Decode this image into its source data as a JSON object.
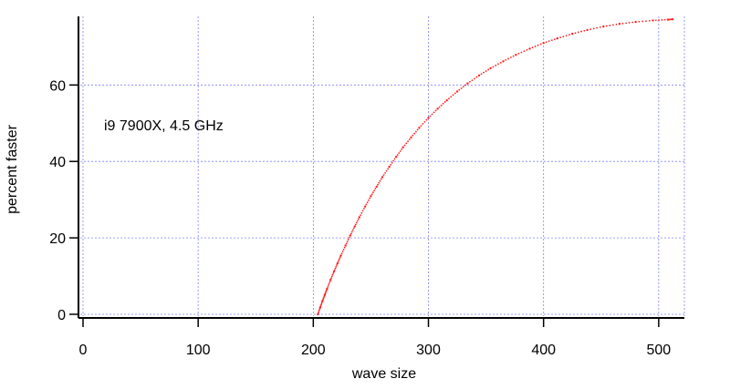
{
  "chart_data": {
    "type": "scatter",
    "title": "",
    "xlabel": "wave size",
    "ylabel": "percent faster",
    "annotation": "i9 7900X, 4.5 GHz",
    "xlim": [
      0,
      512
    ],
    "ylim": [
      0,
      77
    ],
    "x_ticks": [
      0,
      100,
      200,
      300,
      400,
      500
    ],
    "y_ticks": [
      0,
      20,
      40,
      60
    ],
    "grid": true,
    "grid_color": "#8080ff",
    "axis_color": "#000000",
    "series": [
      {
        "color": "#ff2020",
        "x": [
          204,
          206,
          208,
          210,
          212,
          215,
          218,
          221,
          224,
          228,
          232,
          236,
          240,
          245,
          250,
          255,
          260,
          266,
          272,
          278,
          285,
          292,
          300,
          308,
          316,
          325,
          334,
          344,
          354,
          365,
          376,
          388,
          400,
          412,
          425,
          438,
          452,
          466,
          480,
          495,
          508,
          512
        ],
        "y": [
          0,
          1.8,
          3.5,
          5.1,
          6.7,
          9.0,
          11.2,
          13.3,
          15.4,
          18.0,
          20.6,
          23.0,
          25.4,
          28.2,
          30.9,
          33.4,
          35.9,
          38.6,
          41.2,
          43.7,
          46.3,
          48.8,
          51.4,
          53.8,
          56.0,
          58.3,
          60.4,
          62.5,
          64.4,
          66.2,
          67.9,
          69.5,
          71.0,
          72.2,
          73.4,
          74.4,
          75.3,
          76.0,
          76.5,
          76.9,
          77.1,
          77.2
        ]
      }
    ]
  }
}
